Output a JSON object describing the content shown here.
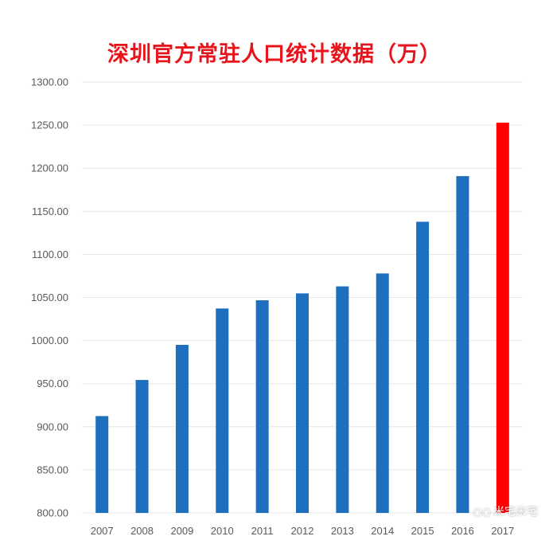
{
  "chart_data": {
    "type": "bar",
    "title": "深圳官方常驻人口统计数据（万）",
    "xlabel": "",
    "ylabel": "",
    "categories": [
      "2007",
      "2008",
      "2009",
      "2010",
      "2011",
      "2012",
      "2013",
      "2014",
      "2015",
      "2016",
      "2017"
    ],
    "values": [
      912.37,
      954.28,
      995.01,
      1037.2,
      1046.74,
      1054.74,
      1062.89,
      1077.89,
      1137.87,
      1190.84,
      1252.83
    ],
    "ylim": [
      800,
      1300
    ],
    "yticks": [
      "800.00",
      "850.00",
      "900.00",
      "950.00",
      "1000.00",
      "1050.00",
      "1100.00",
      "1150.00",
      "1200.00",
      "1250.00",
      "1300.00"
    ],
    "grid": true,
    "legend": "none",
    "colors": {
      "bar": "#1f6fbf",
      "highlight": "#ff0000",
      "title": "#e8141b",
      "grid": "#e6e6e6"
    },
    "highlight_index": 10
  },
  "watermark": {
    "icon": "wechat-icon",
    "text": "米宅米宅"
  }
}
